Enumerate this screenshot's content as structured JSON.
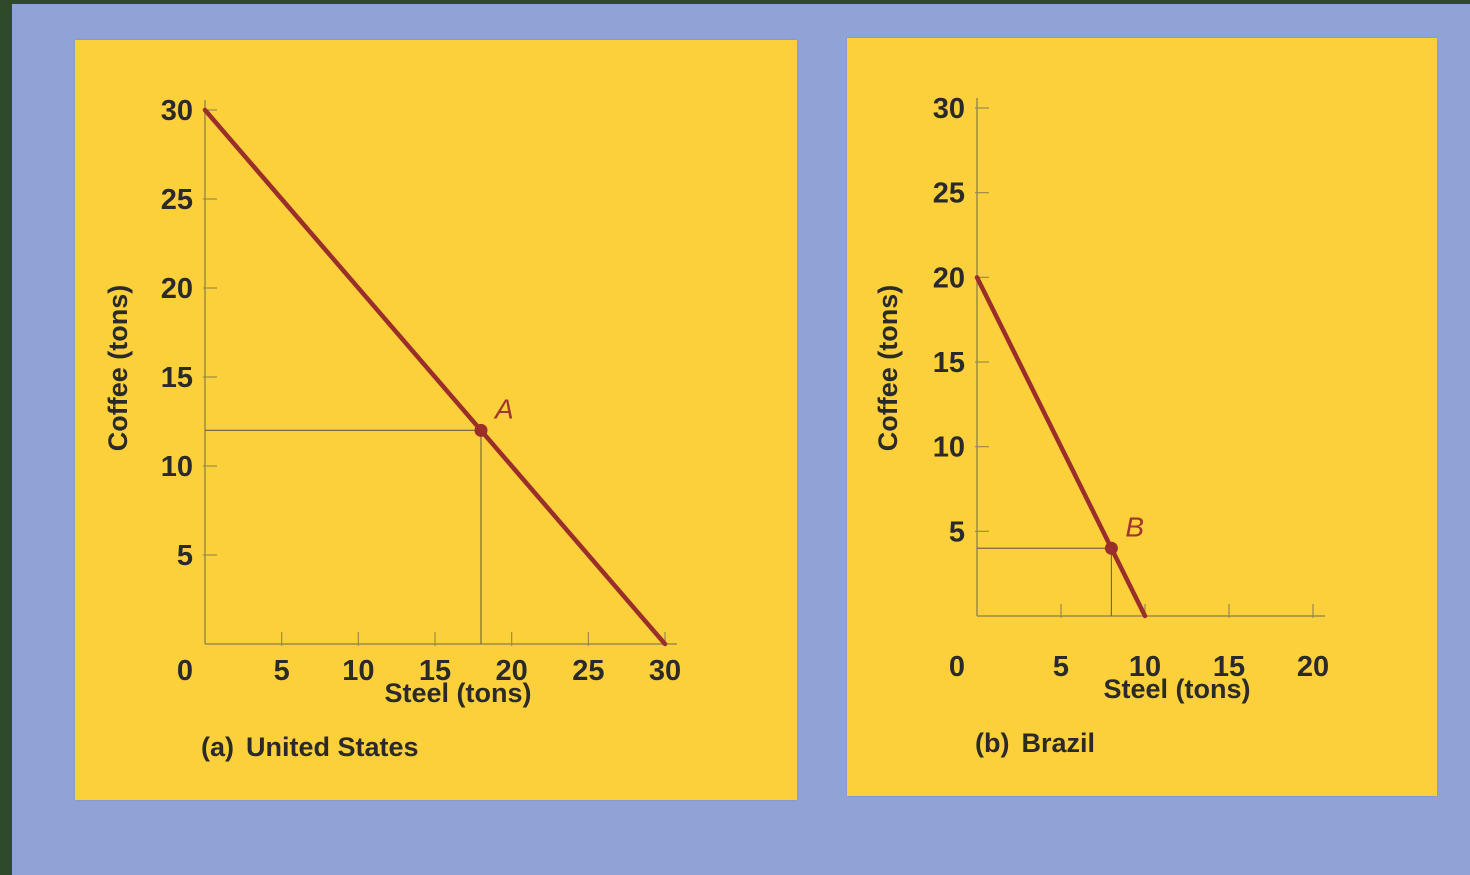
{
  "colors": {
    "background": "#8fa3d6",
    "panel": "#fcd03b",
    "curve": "#9a2e2a",
    "axis": "#9a8a4a",
    "text": "#2a2a2a"
  },
  "chart_data": [
    {
      "type": "line",
      "caption_tag": "(a)",
      "caption_name": "United States",
      "xlabel": "Steel (tons)",
      "ylabel": "Coffee (tons)",
      "xlim": [
        0,
        30
      ],
      "ylim": [
        0,
        30
      ],
      "x_ticks": [
        "0",
        "5",
        "10",
        "15",
        "20",
        "25",
        "30"
      ],
      "y_ticks": [
        "5",
        "10",
        "15",
        "20",
        "25",
        "30"
      ],
      "series": [
        {
          "x": [
            0,
            30
          ],
          "y": [
            30,
            0
          ]
        }
      ],
      "point": {
        "label": "A",
        "x": 18,
        "y": 12
      }
    },
    {
      "type": "line",
      "caption_tag": "(b)",
      "caption_name": "Brazil",
      "xlabel": "Steel (tons)",
      "ylabel": "Coffee (tons)",
      "xlim": [
        0,
        20
      ],
      "ylim": [
        0,
        30
      ],
      "x_ticks": [
        "0",
        "5",
        "10",
        "15",
        "20"
      ],
      "y_ticks": [
        "5",
        "10",
        "15",
        "20",
        "25",
        "30"
      ],
      "series": [
        {
          "x": [
            0,
            10
          ],
          "y": [
            20,
            0
          ]
        }
      ],
      "point": {
        "label": "B",
        "x": 8,
        "y": 4
      }
    }
  ]
}
